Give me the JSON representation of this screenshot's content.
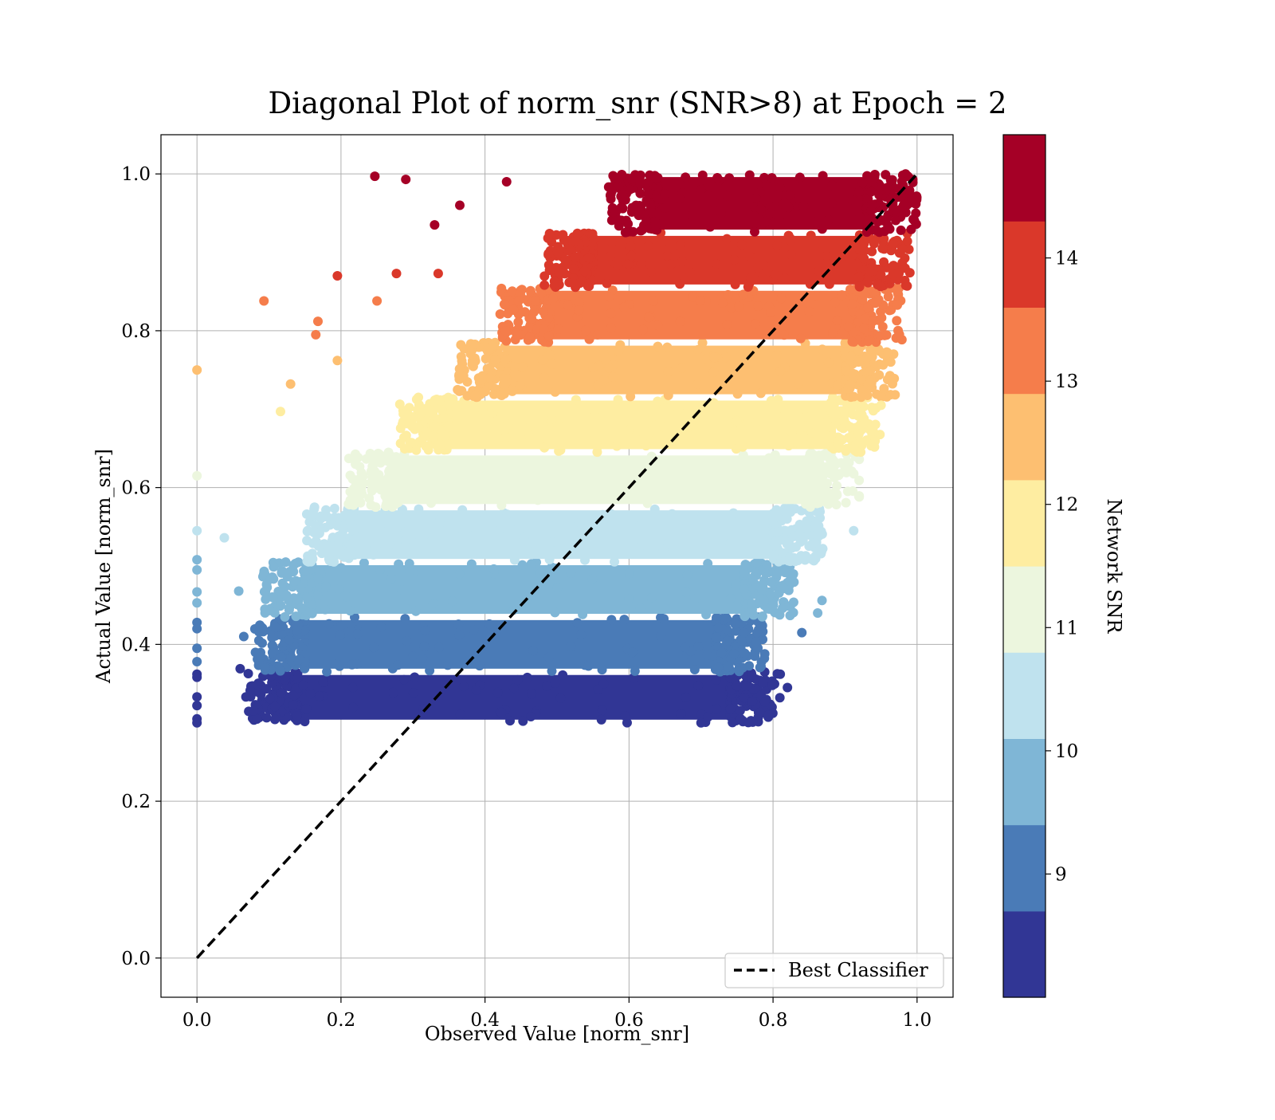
{
  "chart_data": {
    "type": "scatter",
    "title": "Diagonal Plot of norm_snr (SNR>8) at Epoch = 2",
    "xlabel": "Observed Value [norm_snr]",
    "ylabel": "Actual Value [norm_snr]",
    "xlim": [
      -0.05,
      1.05
    ],
    "ylim": [
      -0.05,
      1.05
    ],
    "x_ticks": [
      "0.0",
      "0.2",
      "0.4",
      "0.6",
      "0.8",
      "1.0"
    ],
    "y_ticks": [
      "0.0",
      "0.2",
      "0.4",
      "0.6",
      "0.8",
      "1.0"
    ],
    "grid": true,
    "legend": {
      "position": "lower-right",
      "entries": [
        "Best Classifier"
      ]
    },
    "reference_line": {
      "name": "Best Classifier",
      "style": "dashed",
      "color": "#000000",
      "x": [
        0,
        1
      ],
      "y": [
        0,
        1
      ]
    },
    "colorbar": {
      "label": "Network SNR",
      "range": [
        8,
        15
      ],
      "tick_values": [
        9,
        10,
        11,
        12,
        13,
        14
      ],
      "tick_labels": [
        "9",
        "10",
        "11",
        "12",
        "13",
        "14"
      ],
      "band_colors": [
        "#313695",
        "#4a7bb7",
        "#7fb6d6",
        "#bfe2ee",
        "#ecf6de",
        "#feeda1",
        "#fdbf71",
        "#f57d4b",
        "#da382a",
        "#a50026"
      ]
    },
    "bands": [
      {
        "snr_range": [
          8.0,
          8.7
        ],
        "y": [
          0.3,
          0.365
        ],
        "x_core": [
          0.1,
          0.78
        ],
        "color": "#313695"
      },
      {
        "snr_range": [
          8.7,
          9.4
        ],
        "y": [
          0.365,
          0.435
        ],
        "x_core": [
          0.11,
          0.76
        ],
        "color": "#4a7bb7"
      },
      {
        "snr_range": [
          9.4,
          10.1
        ],
        "y": [
          0.435,
          0.505
        ],
        "x_core": [
          0.12,
          0.8
        ],
        "color": "#7fb6d6"
      },
      {
        "snr_range": [
          10.1,
          10.8
        ],
        "y": [
          0.505,
          0.575
        ],
        "x_core": [
          0.18,
          0.84
        ],
        "color": "#bfe2ee"
      },
      {
        "snr_range": [
          10.8,
          11.5
        ],
        "y": [
          0.575,
          0.645
        ],
        "x_core": [
          0.24,
          0.89
        ],
        "color": "#ecf6de"
      },
      {
        "snr_range": [
          11.5,
          12.2
        ],
        "y": [
          0.645,
          0.715
        ],
        "x_core": [
          0.31,
          0.92
        ],
        "color": "#feeda1"
      },
      {
        "snr_range": [
          12.2,
          12.9
        ],
        "y": [
          0.715,
          0.785
        ],
        "x_core": [
          0.39,
          0.94
        ],
        "color": "#fdbf71"
      },
      {
        "snr_range": [
          12.9,
          13.6
        ],
        "y": [
          0.785,
          0.855
        ],
        "x_core": [
          0.45,
          0.95
        ],
        "color": "#f57d4b"
      },
      {
        "snr_range": [
          13.6,
          14.3
        ],
        "y": [
          0.855,
          0.925
        ],
        "x_core": [
          0.51,
          0.96
        ],
        "color": "#da382a"
      },
      {
        "snr_range": [
          14.3,
          15.0
        ],
        "y": [
          0.925,
          1.0
        ],
        "x_core": [
          0.6,
          0.97
        ],
        "color": "#a50026"
      }
    ],
    "outliers": [
      {
        "x": 0.0,
        "y": 0.75,
        "color": "#fdbf71"
      },
      {
        "x": 0.0,
        "y": 0.615,
        "color": "#ecf6de"
      },
      {
        "x": 0.0,
        "y": 0.545,
        "color": "#bfe2ee"
      },
      {
        "x": 0.0,
        "y": 0.508,
        "color": "#7fb6d6"
      },
      {
        "x": 0.0,
        "y": 0.495,
        "color": "#7fb6d6"
      },
      {
        "x": 0.0,
        "y": 0.467,
        "color": "#7fb6d6"
      },
      {
        "x": 0.0,
        "y": 0.453,
        "color": "#7fb6d6"
      },
      {
        "x": 0.0,
        "y": 0.428,
        "color": "#4a7bb7"
      },
      {
        "x": 0.0,
        "y": 0.42,
        "color": "#4a7bb7"
      },
      {
        "x": 0.0,
        "y": 0.395,
        "color": "#4a7bb7"
      },
      {
        "x": 0.0,
        "y": 0.378,
        "color": "#4a7bb7"
      },
      {
        "x": 0.0,
        "y": 0.362,
        "color": "#313695"
      },
      {
        "x": 0.0,
        "y": 0.358,
        "color": "#313695"
      },
      {
        "x": 0.0,
        "y": 0.333,
        "color": "#313695"
      },
      {
        "x": 0.0,
        "y": 0.322,
        "color": "#313695"
      },
      {
        "x": 0.0,
        "y": 0.305,
        "color": "#313695"
      },
      {
        "x": 0.0,
        "y": 0.3,
        "color": "#313695"
      },
      {
        "x": 0.038,
        "y": 0.536,
        "color": "#bfe2ee"
      },
      {
        "x": 0.058,
        "y": 0.468,
        "color": "#7fb6d6"
      },
      {
        "x": 0.06,
        "y": 0.369,
        "color": "#313695"
      },
      {
        "x": 0.065,
        "y": 0.41,
        "color": "#4a7bb7"
      },
      {
        "x": 0.068,
        "y": 0.333,
        "color": "#313695"
      },
      {
        "x": 0.093,
        "y": 0.838,
        "color": "#f57d4b"
      },
      {
        "x": 0.13,
        "y": 0.732,
        "color": "#fdbf71"
      },
      {
        "x": 0.116,
        "y": 0.697,
        "color": "#feeda1"
      },
      {
        "x": 0.168,
        "y": 0.812,
        "color": "#f57d4b"
      },
      {
        "x": 0.165,
        "y": 0.795,
        "color": "#f57d4b"
      },
      {
        "x": 0.195,
        "y": 0.87,
        "color": "#da382a"
      },
      {
        "x": 0.195,
        "y": 0.762,
        "color": "#fdbf71"
      },
      {
        "x": 0.247,
        "y": 0.997,
        "color": "#a50026"
      },
      {
        "x": 0.29,
        "y": 0.993,
        "color": "#a50026"
      },
      {
        "x": 0.277,
        "y": 0.873,
        "color": "#da382a"
      },
      {
        "x": 0.25,
        "y": 0.838,
        "color": "#f57d4b"
      },
      {
        "x": 0.335,
        "y": 0.873,
        "color": "#da382a"
      },
      {
        "x": 0.33,
        "y": 0.935,
        "color": "#a50026"
      },
      {
        "x": 0.365,
        "y": 0.96,
        "color": "#a50026"
      },
      {
        "x": 0.43,
        "y": 0.99,
        "color": "#a50026"
      },
      {
        "x": 0.7,
        "y": 0.3,
        "color": "#313695"
      },
      {
        "x": 0.755,
        "y": 0.305,
        "color": "#313695"
      },
      {
        "x": 0.82,
        "y": 0.345,
        "color": "#313695"
      },
      {
        "x": 0.81,
        "y": 0.362,
        "color": "#313695"
      },
      {
        "x": 0.84,
        "y": 0.415,
        "color": "#4a7bb7"
      },
      {
        "x": 0.862,
        "y": 0.44,
        "color": "#7fb6d6"
      },
      {
        "x": 0.868,
        "y": 0.456,
        "color": "#7fb6d6"
      },
      {
        "x": 0.912,
        "y": 0.545,
        "color": "#bfe2ee"
      },
      {
        "x": 0.95,
        "y": 0.705,
        "color": "#feeda1"
      },
      {
        "x": 0.99,
        "y": 0.874,
        "color": "#da382a"
      }
    ]
  }
}
